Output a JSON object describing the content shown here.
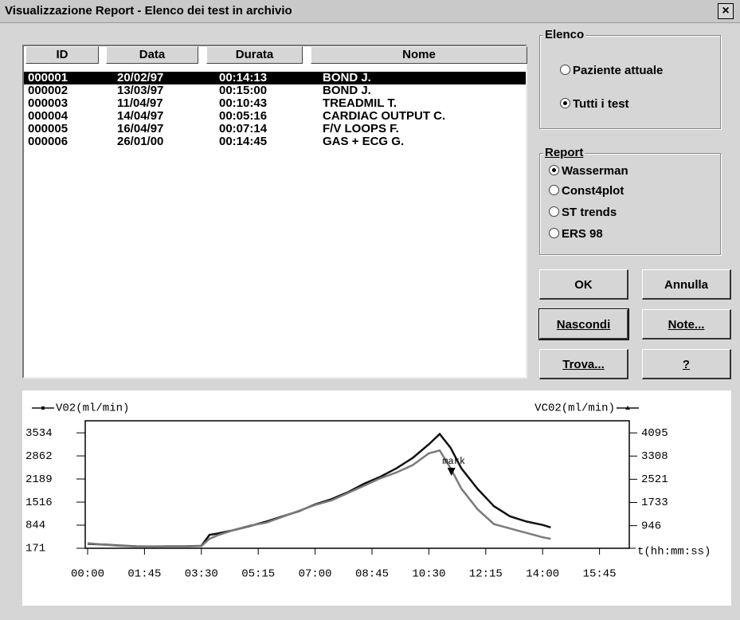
{
  "window": {
    "title": "Visualizzazione Report - Elenco dei test in archivio",
    "close": "×"
  },
  "table": {
    "columns": [
      "ID",
      "Data",
      "Durata",
      "Nome"
    ],
    "rows": [
      [
        "000001",
        "20/02/97",
        "00:14:13",
        "BOND J."
      ],
      [
        "000002",
        "13/03/97",
        "00:15:00",
        "BOND J."
      ],
      [
        "000003",
        "11/04/97",
        "00:10:43",
        "TREADMIL T."
      ],
      [
        "000004",
        "14/04/97",
        "00:05:16",
        "CARDIAC OUTPUT C."
      ],
      [
        "000005",
        "16/04/97",
        "00:07:14",
        "F/V LOOPS F."
      ],
      [
        "000006",
        "26/01/00",
        "00:14:45",
        "GAS + ECG G."
      ]
    ],
    "selected_index": 0
  },
  "elenco": {
    "title": "Elenco",
    "options": [
      "Paziente attuale",
      "Tutti i test"
    ],
    "selected_index": 1
  },
  "report": {
    "title": "Report",
    "options": [
      "Wasserman",
      "Const4plot",
      "ST trends",
      "ERS 98"
    ],
    "selected_index": 0
  },
  "buttons": [
    "OK",
    "Annulla",
    "Nascondi",
    "Note...",
    "Trova...",
    "?"
  ],
  "chart_data": {
    "type": "line",
    "xlabel": "t(hh:mm:ss)",
    "x": [
      0,
      30,
      60,
      90,
      120,
      150,
      180,
      210,
      225,
      240,
      270,
      300,
      330,
      360,
      390,
      420,
      450,
      480,
      510,
      540,
      570,
      600,
      630,
      650,
      670,
      690,
      720,
      750,
      780,
      810,
      840,
      855
    ],
    "series": [
      {
        "name": "V02(ml/min)",
        "color": "#111111",
        "axis": "y",
        "values": [
          300,
          280,
          250,
          230,
          220,
          230,
          230,
          240,
          560,
          600,
          700,
          820,
          950,
          1100,
          1250,
          1450,
          1600,
          1800,
          2050,
          2250,
          2500,
          2800,
          3200,
          3500,
          3100,
          2500,
          1900,
          1400,
          1100,
          950,
          850,
          780
        ]
      },
      {
        "name": "VC02(ml/min)",
        "color": "#7a7a7a",
        "axis": "y2",
        "values": [
          350,
          300,
          260,
          240,
          230,
          240,
          240,
          250,
          500,
          620,
          800,
          950,
          1050,
          1250,
          1450,
          1650,
          1800,
          2050,
          2300,
          2550,
          2750,
          3000,
          3400,
          3500,
          2900,
          2200,
          1500,
          1000,
          850,
          700,
          550,
          500
        ]
      }
    ],
    "xlim": [
      0,
      1000
    ],
    "xticks": [
      {
        "value": 0,
        "label": "00:00"
      },
      {
        "value": 105,
        "label": "01:45"
      },
      {
        "value": 210,
        "label": "03:30"
      },
      {
        "value": 315,
        "label": "05:15"
      },
      {
        "value": 420,
        "label": "07:00"
      },
      {
        "value": 525,
        "label": "08:45"
      },
      {
        "value": 630,
        "label": "10:30"
      },
      {
        "value": 735,
        "label": "12:15"
      },
      {
        "value": 840,
        "label": "14:00"
      },
      {
        "value": 945,
        "label": "15:45"
      }
    ],
    "ylim": [
      171,
      3885
    ],
    "yticks": [
      171,
      844,
      1516,
      2189,
      2862,
      3534
    ],
    "y2lim": [
      178,
      4506
    ],
    "y2ticks": [
      946,
      1733,
      2521,
      3308,
      4095
    ],
    "annotations": [
      {
        "text": "mark",
        "x": 676,
        "y": 2702
      }
    ]
  }
}
